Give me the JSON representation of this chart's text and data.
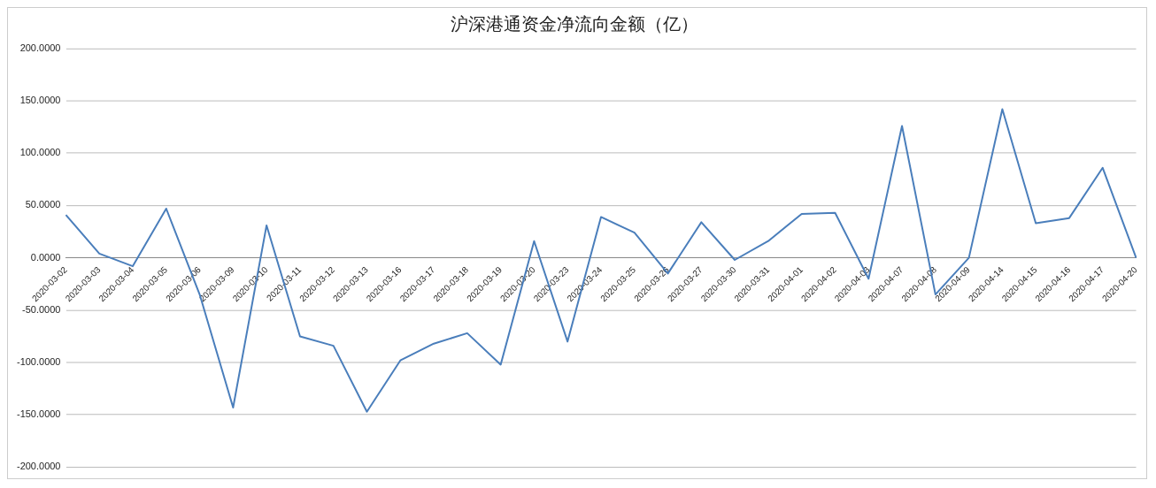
{
  "chart_data": {
    "type": "line",
    "title": "沪深港通资金净流向金额（亿）",
    "categories": [
      "2020-03-02",
      "2020-03-03",
      "2020-03-04",
      "2020-03-05",
      "2020-03-06",
      "2020-03-09",
      "2020-03-10",
      "2020-03-11",
      "2020-03-12",
      "2020-03-13",
      "2020-03-16",
      "2020-03-17",
      "2020-03-18",
      "2020-03-19",
      "2020-03-20",
      "2020-03-23",
      "2020-03-24",
      "2020-03-25",
      "2020-03-26",
      "2020-03-27",
      "2020-03-30",
      "2020-03-31",
      "2020-04-01",
      "2020-04-02",
      "2020-04-03",
      "2020-04-07",
      "2020-04-08",
      "2020-04-09",
      "2020-04-14",
      "2020-04-15",
      "2020-04-16",
      "2020-04-17",
      "2020-04-20"
    ],
    "series": [
      {
        "color": "#4a7ebb",
        "values": [
          41,
          4,
          -8,
          47,
          -35,
          -143,
          31,
          -75,
          -84,
          -147,
          -98,
          -82,
          -72,
          -102,
          16,
          -80,
          39,
          24,
          -15,
          34,
          -2,
          16,
          42,
          43,
          -20,
          126,
          -35,
          0,
          142,
          33,
          38,
          86,
          0
        ]
      }
    ],
    "ylim": [
      -200,
      200
    ],
    "yticks": [
      {
        "value": -200,
        "label": "-200.0000"
      },
      {
        "value": -150,
        "label": "-150.0000"
      },
      {
        "value": -100,
        "label": "-100.0000"
      },
      {
        "value": -50,
        "label": "-50.0000"
      },
      {
        "value": 0,
        "label": "0.0000"
      },
      {
        "value": 50,
        "label": "50.0000"
      },
      {
        "value": 100,
        "label": "100.0000"
      },
      {
        "value": 150,
        "label": "150.0000"
      },
      {
        "value": 200,
        "label": "200.0000"
      }
    ],
    "grid": "y",
    "legend": false,
    "marker": "none",
    "line_style": "solid"
  }
}
